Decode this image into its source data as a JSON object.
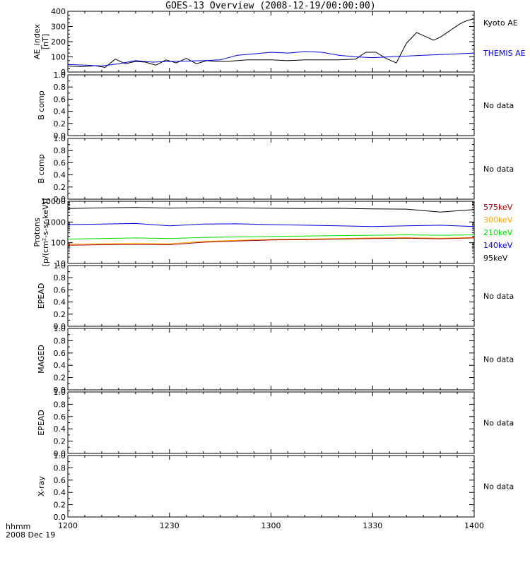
{
  "title": "GOES-13 Overview (2008-12-19/00:00:00)",
  "footer": {
    "line1": "hhmm",
    "line2": "2008 Dec 19"
  },
  "x_tick_labels": [
    "1200",
    "1230",
    "1300",
    "1330",
    "1400"
  ],
  "colors": {
    "black": "#000000",
    "blue": "#0000e0",
    "green": "#00e000",
    "orange": "#ffa500",
    "red": "#c00000",
    "darkred": "#a00000"
  },
  "chart_data": [
    {
      "type": "line",
      "ylabel": "AE_index\n[nT]",
      "ylim": [
        0,
        400
      ],
      "yticks": [
        "0",
        "100",
        "200",
        "300",
        "400"
      ],
      "xlim": [
        0,
        120
      ],
      "series": [
        {
          "name": "Kyoto AE",
          "color": "#000000",
          "x": [
            0,
            4,
            8,
            11,
            14,
            17,
            20,
            23,
            26,
            29,
            32,
            35,
            38,
            41,
            44,
            47,
            50,
            53,
            56,
            60,
            65,
            70,
            75,
            80,
            85,
            88,
            91,
            94,
            97,
            100,
            103,
            106,
            108,
            110,
            112,
            114,
            116,
            118,
            120
          ],
          "y": [
            40,
            35,
            42,
            30,
            85,
            55,
            70,
            65,
            45,
            80,
            60,
            90,
            55,
            75,
            70,
            70,
            75,
            80,
            80,
            80,
            75,
            80,
            80,
            80,
            85,
            130,
            130,
            90,
            60,
            190,
            260,
            230,
            210,
            230,
            260,
            290,
            320,
            340,
            350
          ]
        },
        {
          "name": "THEMIS AE",
          "color": "#0000e0",
          "x": [
            0,
            5,
            10,
            15,
            20,
            25,
            30,
            35,
            40,
            45,
            50,
            55,
            60,
            65,
            70,
            75,
            80,
            85,
            90,
            95,
            100,
            105,
            110,
            115,
            120
          ],
          "y": [
            50,
            45,
            40,
            55,
            75,
            65,
            70,
            72,
            75,
            80,
            110,
            120,
            130,
            125,
            135,
            130,
            110,
            100,
            95,
            100,
            105,
            110,
            115,
            120,
            125
          ]
        }
      ]
    },
    {
      "type": "line",
      "ylabel": "B comp",
      "ylim": [
        0,
        1
      ],
      "yticks": [
        "0.0",
        "0.2",
        "0.4",
        "0.6",
        "0.8",
        "1.0"
      ],
      "note": "No data",
      "series": []
    },
    {
      "type": "line",
      "ylabel": "B comp",
      "ylim": [
        0,
        1
      ],
      "yticks": [
        "0.0",
        "0.2",
        "0.4",
        "0.6",
        "0.8",
        "1.0"
      ],
      "note": "No data",
      "series": []
    },
    {
      "type": "line",
      "ylabel": "Protons\n[p/(cm²-s-sr-keV)]",
      "yscale": "log",
      "ylim": [
        10,
        10000
      ],
      "yticks": [
        "10",
        "100",
        "1000",
        "10000"
      ],
      "xlim": [
        0,
        120
      ],
      "series": [
        {
          "name": "95keV",
          "color": "#000000",
          "x": [
            0,
            10,
            20,
            30,
            40,
            50,
            60,
            70,
            80,
            90,
            100,
            110,
            120
          ],
          "y": [
            4500,
            4800,
            5000,
            4700,
            4900,
            4800,
            4600,
            4500,
            4600,
            4300,
            4200,
            3000,
            4000
          ]
        },
        {
          "name": "140keV",
          "color": "#0000e0",
          "x": [
            0,
            10,
            20,
            30,
            40,
            50,
            60,
            70,
            80,
            90,
            100,
            110,
            120
          ],
          "y": [
            750,
            800,
            850,
            650,
            800,
            820,
            750,
            700,
            650,
            600,
            650,
            700,
            600
          ]
        },
        {
          "name": "210keV",
          "color": "#00e000",
          "x": [
            0,
            10,
            20,
            30,
            40,
            50,
            60,
            70,
            80,
            90,
            100,
            110,
            120
          ],
          "y": [
            150,
            160,
            170,
            160,
            180,
            190,
            200,
            210,
            220,
            230,
            240,
            230,
            240
          ]
        },
        {
          "name": "300keV",
          "color": "#ffa500",
          "x": [
            0,
            10,
            20,
            30,
            40,
            50,
            60,
            70,
            80,
            90,
            100,
            110,
            120
          ],
          "y": [
            85,
            90,
            95,
            90,
            115,
            130,
            145,
            150,
            160,
            170,
            175,
            165,
            180
          ]
        },
        {
          "name": "575keV",
          "color": "#a00000",
          "x": [
            0,
            10,
            20,
            30,
            40,
            50,
            60,
            70,
            80,
            90,
            100,
            110,
            120
          ],
          "y": [
            75,
            80,
            82,
            80,
            105,
            120,
            135,
            140,
            150,
            160,
            165,
            155,
            170
          ]
        }
      ],
      "legend": [
        {
          "label": "575keV",
          "color": "#a00000"
        },
        {
          "label": "300keV",
          "color": "#ffa500"
        },
        {
          "label": "210keV",
          "color": "#00e000"
        },
        {
          "label": "140keV",
          "color": "#0000e0"
        },
        {
          "label": "95keV",
          "color": "#000000"
        }
      ]
    },
    {
      "type": "line",
      "ylabel": "EPEAD",
      "ylim": [
        0,
        1
      ],
      "yticks": [
        "0.0",
        "0.2",
        "0.4",
        "0.6",
        "0.8",
        "1.0"
      ],
      "note": "No data",
      "series": []
    },
    {
      "type": "line",
      "ylabel": "MAGED",
      "ylim": [
        0,
        1
      ],
      "yticks": [
        "0.0",
        "0.2",
        "0.4",
        "0.6",
        "0.8",
        "1.0"
      ],
      "note": "No data",
      "series": []
    },
    {
      "type": "line",
      "ylabel": "EPEAD",
      "ylim": [
        0,
        1
      ],
      "yticks": [
        "0.0",
        "0.2",
        "0.4",
        "0.6",
        "0.8",
        "1.0"
      ],
      "note": "No data",
      "series": []
    },
    {
      "type": "line",
      "ylabel": "X-ray",
      "ylim": [
        0,
        1
      ],
      "yticks": [
        "0.0",
        "0.2",
        "0.4",
        "0.6",
        "0.8",
        "1.0"
      ],
      "note": "No data",
      "series": []
    }
  ]
}
